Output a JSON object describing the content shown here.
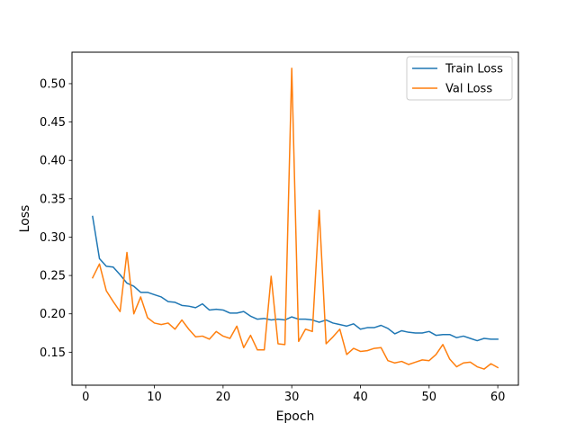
{
  "chart_data": {
    "type": "line",
    "title": "",
    "xlabel": "Epoch",
    "ylabel": "Loss",
    "xlim": [
      -2,
      63
    ],
    "ylim": [
      0.107,
      0.541
    ],
    "xticks": [
      0,
      10,
      20,
      30,
      40,
      50,
      60
    ],
    "yticks": [
      0.15,
      0.2,
      0.25,
      0.3,
      0.35,
      0.4,
      0.45,
      0.5
    ],
    "ytick_labels": [
      "0.15",
      "0.20",
      "0.25",
      "0.30",
      "0.35",
      "0.40",
      "0.45",
      "0.50"
    ],
    "legend_position": "top-right",
    "grid": false,
    "x": [
      1,
      2,
      3,
      4,
      5,
      6,
      7,
      8,
      9,
      10,
      11,
      12,
      13,
      14,
      15,
      16,
      17,
      18,
      19,
      20,
      21,
      22,
      23,
      24,
      25,
      26,
      27,
      28,
      29,
      30,
      31,
      32,
      33,
      34,
      35,
      36,
      37,
      38,
      39,
      40,
      41,
      42,
      43,
      44,
      45,
      46,
      47,
      48,
      49,
      50,
      51,
      52,
      53,
      54,
      55,
      56,
      57,
      58,
      59,
      60
    ],
    "series": [
      {
        "name": "Train Loss",
        "color": "#1f77b4",
        "values": [
          0.327,
          0.272,
          0.262,
          0.261,
          0.251,
          0.24,
          0.236,
          0.228,
          0.228,
          0.225,
          0.222,
          0.216,
          0.215,
          0.211,
          0.21,
          0.208,
          0.213,
          0.205,
          0.206,
          0.205,
          0.201,
          0.201,
          0.203,
          0.197,
          0.193,
          0.194,
          0.192,
          0.193,
          0.192,
          0.196,
          0.193,
          0.193,
          0.192,
          0.189,
          0.192,
          0.188,
          0.186,
          0.184,
          0.187,
          0.18,
          0.182,
          0.182,
          0.185,
          0.181,
          0.174,
          0.178,
          0.176,
          0.175,
          0.175,
          0.177,
          0.172,
          0.173,
          0.173,
          0.169,
          0.171,
          0.168,
          0.165,
          0.168,
          0.167,
          0.167
        ]
      },
      {
        "name": "Val Loss",
        "color": "#ff7f0e",
        "values": [
          0.247,
          0.265,
          0.23,
          0.216,
          0.203,
          0.28,
          0.2,
          0.222,
          0.195,
          0.188,
          0.186,
          0.188,
          0.18,
          0.192,
          0.18,
          0.17,
          0.171,
          0.167,
          0.177,
          0.171,
          0.168,
          0.184,
          0.156,
          0.172,
          0.153,
          0.153,
          0.249,
          0.161,
          0.16,
          0.52,
          0.164,
          0.18,
          0.177,
          0.335,
          0.161,
          0.17,
          0.18,
          0.147,
          0.155,
          0.151,
          0.152,
          0.155,
          0.156,
          0.139,
          0.136,
          0.138,
          0.134,
          0.137,
          0.14,
          0.139,
          0.147,
          0.16,
          0.141,
          0.131,
          0.136,
          0.137,
          0.131,
          0.128,
          0.135,
          0.13
        ]
      }
    ]
  }
}
